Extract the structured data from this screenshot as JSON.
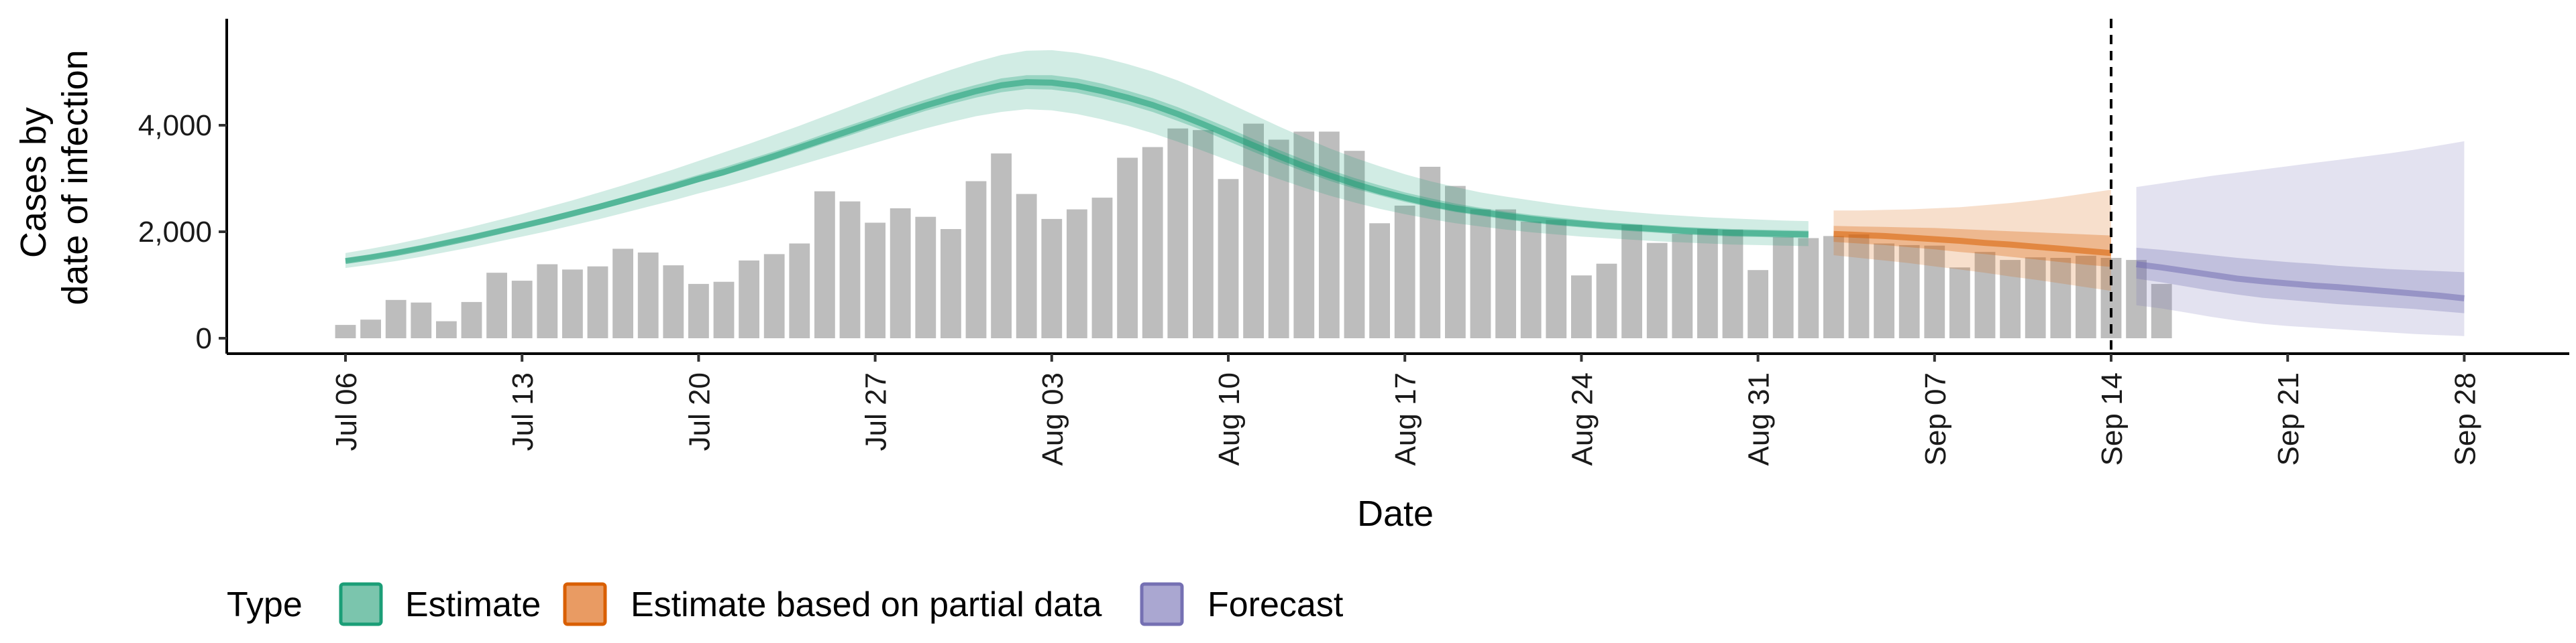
{
  "chart_data": {
    "type": "bar",
    "xlabel": "Date",
    "ylabel": [
      "Cases by",
      "date of infection"
    ],
    "ylim": [
      0,
      5900
    ],
    "xlim": [
      "2020-07-06",
      "2020-09-28"
    ],
    "y_ticks": [
      0,
      2000,
      4000
    ],
    "y_tick_labels": [
      "0",
      "2,000",
      "4,000"
    ],
    "x_ticks": [
      "2020-07-06",
      "2020-07-13",
      "2020-07-20",
      "2020-07-27",
      "2020-08-03",
      "2020-08-10",
      "2020-08-17",
      "2020-08-24",
      "2020-08-31",
      "2020-09-07",
      "2020-09-14",
      "2020-09-21",
      "2020-09-28"
    ],
    "x_tick_labels": [
      "Jul 06",
      "Jul 13",
      "Jul 20",
      "Jul 27",
      "Aug 03",
      "Aug 10",
      "Aug 17",
      "Aug 24",
      "Aug 31",
      "Sep 07",
      "Sep 14",
      "Sep 21",
      "Sep 28"
    ],
    "vline_date": "2020-09-14",
    "grid": false,
    "bars": {
      "start_date": "2020-07-06",
      "color": "#bdbdbd",
      "values": [
        250,
        350,
        720,
        670,
        320,
        680,
        1230,
        1080,
        1390,
        1290,
        1350,
        1680,
        1610,
        1370,
        1020,
        1060,
        1460,
        1580,
        1780,
        2760,
        2570,
        2170,
        2440,
        2280,
        2050,
        2950,
        3470,
        2710,
        2240,
        2420,
        2640,
        3390,
        3590,
        3940,
        3910,
        2990,
        4030,
        3730,
        3880,
        3880,
        3520,
        2160,
        2490,
        3220,
        2860,
        2420,
        2420,
        2190,
        2220,
        1180,
        1400,
        2130,
        1790,
        1960,
        2050,
        2040,
        1280,
        1900,
        1880,
        1920,
        1950,
        1780,
        1750,
        1740,
        1330,
        1620,
        1470,
        1520,
        1510,
        1550,
        1510,
        1470,
        1020
      ]
    },
    "series": [
      {
        "name": "Estimate",
        "color": "#1b9e77",
        "start_date": "2020-07-06",
        "median": [
          1450,
          1520,
          1600,
          1690,
          1790,
          1890,
          2000,
          2110,
          2220,
          2340,
          2460,
          2590,
          2720,
          2850,
          2990,
          3120,
          3270,
          3420,
          3580,
          3740,
          3900,
          4060,
          4220,
          4370,
          4510,
          4640,
          4750,
          4810,
          4800,
          4740,
          4640,
          4520,
          4380,
          4210,
          4020,
          3820,
          3620,
          3420,
          3230,
          3060,
          2900,
          2760,
          2640,
          2530,
          2440,
          2370,
          2300,
          2240,
          2190,
          2150,
          2110,
          2080,
          2050,
          2020,
          2000,
          1980,
          1970,
          1960,
          1950
        ],
        "inner_lower": [
          1410,
          1480,
          1560,
          1650,
          1750,
          1850,
          1950,
          2060,
          2170,
          2290,
          2410,
          2530,
          2660,
          2790,
          2930,
          3060,
          3200,
          3350,
          3500,
          3660,
          3810,
          3970,
          4120,
          4270,
          4400,
          4520,
          4620,
          4680,
          4670,
          4610,
          4510,
          4390,
          4250,
          4080,
          3900,
          3700,
          3500,
          3310,
          3130,
          2960,
          2810,
          2680,
          2560,
          2460,
          2370,
          2300,
          2230,
          2170,
          2120,
          2080,
          2040,
          2010,
          1980,
          1950,
          1930,
          1910,
          1900,
          1890,
          1880
        ],
        "inner_upper": [
          1500,
          1570,
          1650,
          1740,
          1840,
          1940,
          2050,
          2160,
          2280,
          2400,
          2520,
          2650,
          2790,
          2930,
          3070,
          3210,
          3360,
          3510,
          3670,
          3840,
          4000,
          4160,
          4330,
          4480,
          4630,
          4760,
          4880,
          4940,
          4940,
          4880,
          4780,
          4650,
          4510,
          4340,
          4150,
          3950,
          3740,
          3540,
          3350,
          3170,
          3010,
          2870,
          2740,
          2630,
          2530,
          2450,
          2380,
          2320,
          2270,
          2220,
          2180,
          2150,
          2120,
          2090,
          2070,
          2050,
          2040,
          2030,
          2020
        ],
        "outer_lower": [
          1320,
          1380,
          1450,
          1530,
          1620,
          1710,
          1810,
          1910,
          2010,
          2120,
          2230,
          2350,
          2470,
          2590,
          2720,
          2840,
          2970,
          3110,
          3250,
          3390,
          3530,
          3670,
          3810,
          3940,
          4060,
          4170,
          4250,
          4300,
          4280,
          4210,
          4110,
          3990,
          3850,
          3690,
          3520,
          3340,
          3160,
          2990,
          2830,
          2680,
          2550,
          2430,
          2330,
          2240,
          2160,
          2100,
          2040,
          1990,
          1950,
          1910,
          1880,
          1850,
          1820,
          1800,
          1780,
          1760,
          1750,
          1740,
          1730
        ],
        "outer_upper": [
          1600,
          1680,
          1770,
          1870,
          1980,
          2090,
          2210,
          2330,
          2460,
          2590,
          2730,
          2870,
          3020,
          3170,
          3330,
          3490,
          3650,
          3820,
          3990,
          4170,
          4350,
          4530,
          4710,
          4880,
          5040,
          5190,
          5320,
          5400,
          5410,
          5360,
          5270,
          5150,
          5010,
          4840,
          4640,
          4420,
          4200,
          3980,
          3770,
          3570,
          3390,
          3230,
          3080,
          2950,
          2840,
          2740,
          2660,
          2590,
          2520,
          2460,
          2410,
          2370,
          2330,
          2300,
          2270,
          2250,
          2230,
          2210,
          2200
        ]
      },
      {
        "name": "Estimate based on partial data",
        "color": "#d95f02",
        "start_date": "2020-09-03",
        "median": [
          1960,
          1940,
          1920,
          1890,
          1860,
          1830,
          1790,
          1760,
          1720,
          1680,
          1640,
          1600
        ],
        "inner_lower": [
          1810,
          1780,
          1750,
          1710,
          1670,
          1620,
          1580,
          1530,
          1480,
          1430,
          1380,
          1340
        ],
        "inner_upper": [
          2110,
          2100,
          2090,
          2080,
          2070,
          2050,
          2030,
          2010,
          1990,
          1970,
          1950,
          1930
        ],
        "outer_lower": [
          1560,
          1510,
          1460,
          1410,
          1350,
          1290,
          1230,
          1160,
          1100,
          1030,
          960,
          890
        ],
        "outer_upper": [
          2400,
          2400,
          2410,
          2420,
          2440,
          2460,
          2500,
          2540,
          2590,
          2650,
          2720,
          2790
        ]
      },
      {
        "name": "Forecast",
        "color": "#7570b3",
        "start_date": "2020-09-15",
        "median": [
          1390,
          1330,
          1260,
          1190,
          1120,
          1070,
          1030,
          990,
          960,
          920,
          880,
          840,
          800,
          750
        ],
        "inner_lower": [
          1120,
          1050,
          970,
          890,
          820,
          760,
          720,
          680,
          640,
          610,
          580,
          550,
          510,
          470
        ],
        "inner_upper": [
          1700,
          1660,
          1610,
          1560,
          1510,
          1470,
          1430,
          1400,
          1360,
          1330,
          1300,
          1280,
          1260,
          1240
        ],
        "outer_lower": [
          620,
          560,
          480,
          400,
          330,
          270,
          230,
          200,
          170,
          140,
          110,
          80,
          60,
          40
        ],
        "outer_upper": [
          2840,
          2910,
          2980,
          3050,
          3110,
          3170,
          3230,
          3290,
          3350,
          3410,
          3470,
          3540,
          3620,
          3700
        ]
      }
    ],
    "legend": {
      "title": "Type",
      "placement": "bottom-left",
      "items": [
        {
          "label": "Estimate",
          "fill": "#7bc5ad",
          "stroke": "#1b9e77"
        },
        {
          "label": "Estimate based on partial data",
          "fill": "#e99b63",
          "stroke": "#d95f02"
        },
        {
          "label": "Forecast",
          "fill": "#aaa7d1",
          "stroke": "#7570b3"
        }
      ]
    }
  }
}
